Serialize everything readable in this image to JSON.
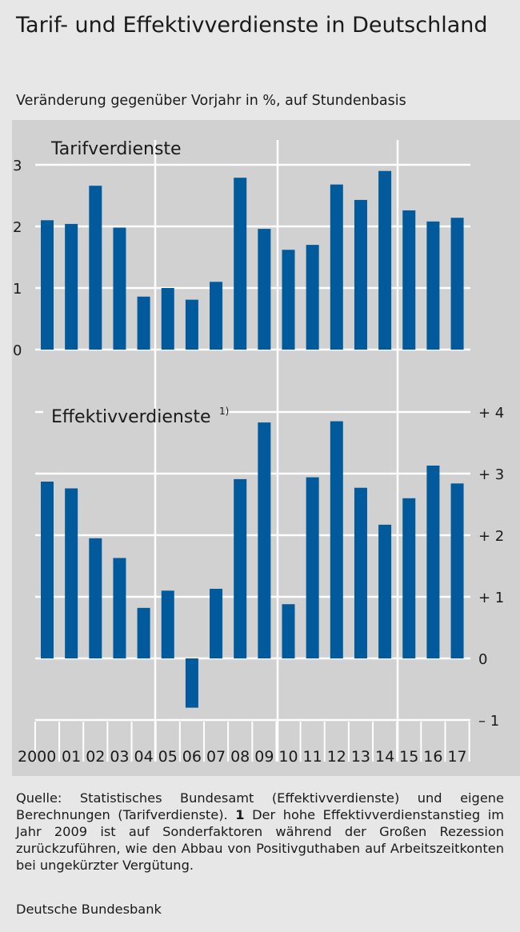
{
  "title": "Tarif- und Effektivverdienste in Deutschland",
  "subtitle": "Veränderung gegenüber Vorjahr in %, auf Stundenbasis",
  "chart_data": [
    {
      "type": "bar",
      "title": "Tarifverdienste",
      "categories": [
        "2000",
        "01",
        "02",
        "03",
        "04",
        "05",
        "06",
        "07",
        "08",
        "09",
        "10",
        "11",
        "12",
        "13",
        "14",
        "15",
        "16",
        "17"
      ],
      "values": [
        2.1,
        2.04,
        2.66,
        1.98,
        0.86,
        1.0,
        0.81,
        1.1,
        2.79,
        1.96,
        1.62,
        1.7,
        2.68,
        2.43,
        2.9,
        2.26,
        2.08,
        2.14
      ],
      "ylim": [
        0,
        3
      ],
      "yticks": [
        "0",
        "1",
        "2",
        "3"
      ],
      "grid": true,
      "axis_side": "left"
    },
    {
      "type": "bar",
      "title": "Effektivverdienste",
      "title_note": "1)",
      "categories": [
        "2000",
        "01",
        "02",
        "03",
        "04",
        "05",
        "06",
        "07",
        "08",
        "09",
        "10",
        "11",
        "12",
        "13",
        "14",
        "15",
        "16",
        "17"
      ],
      "values": [
        2.87,
        2.76,
        1.95,
        1.63,
        0.82,
        1.1,
        -0.8,
        1.13,
        2.91,
        3.83,
        0.88,
        2.94,
        3.85,
        2.77,
        2.17,
        2.6,
        3.13,
        2.84
      ],
      "ylim": [
        -1,
        4
      ],
      "yticks": [
        "– 1",
        "0",
        "+ 1",
        "+ 2",
        "+ 3",
        "+ 4"
      ],
      "grid": true,
      "axis_side": "right"
    }
  ],
  "footnote": {
    "text_a": "Quelle: Statistisches Bundesamt (Effektivverdienste) und eigene Berechnungen (Tarifverdienste).",
    "number": "1",
    "text_b": "Der hohe Effektivverdienst­anstieg im Jahr 2009 ist auf Sonderfaktoren während der Großen Rezession zurückzuführen, wie den Abbau von Positiv­guthaben auf Arbeitszeitkonten bei ungekürzter Vergütung."
  },
  "publisher": "Deutsche Bundesbank",
  "colors": {
    "bar": "#005a9c",
    "panel": "#d1d1d1",
    "page": "#e7e7e7",
    "grid": "#ffffff"
  }
}
